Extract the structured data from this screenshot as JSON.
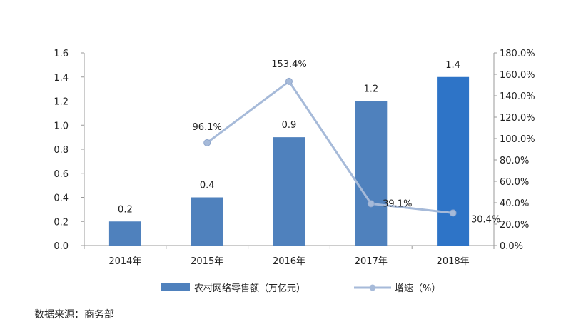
{
  "chart_data": {
    "type": "bar",
    "categories": [
      "2014年",
      "2015年",
      "2016年",
      "2017年",
      "2018年"
    ],
    "series": [
      {
        "name": "农村网络零售额（万亿元）",
        "type": "bar",
        "axis": "left",
        "values": [
          0.2,
          0.4,
          0.9,
          1.2,
          1.4
        ],
        "labels": [
          "0.2",
          "0.4",
          "0.9",
          "1.2",
          "1.4"
        ]
      },
      {
        "name": "增速（%）",
        "type": "line",
        "axis": "right",
        "values": [
          null,
          96.1,
          153.4,
          39.1,
          30.4
        ],
        "labels": [
          "",
          "96.1%",
          "153.4%",
          "39.1%",
          "30.4%"
        ]
      }
    ],
    "y_left": {
      "range": [
        0,
        1.6
      ],
      "ticks": [
        "0.0",
        "0.2",
        "0.4",
        "0.6",
        "0.8",
        "1.0",
        "1.2",
        "1.4",
        "1.6"
      ]
    },
    "y_right": {
      "range": [
        0,
        180
      ],
      "ticks": [
        "0.0%",
        "20.0%",
        "40.0%",
        "60.0%",
        "80.0%",
        "100.0%",
        "120.0%",
        "140.0%",
        "160.0%",
        "180.0%"
      ]
    },
    "colors": {
      "bar": "#4f81bd",
      "bar_last": "#2e74c7",
      "line": "#a6bad9"
    },
    "legend_position": "bottom"
  },
  "source": "数据来源：商务部"
}
